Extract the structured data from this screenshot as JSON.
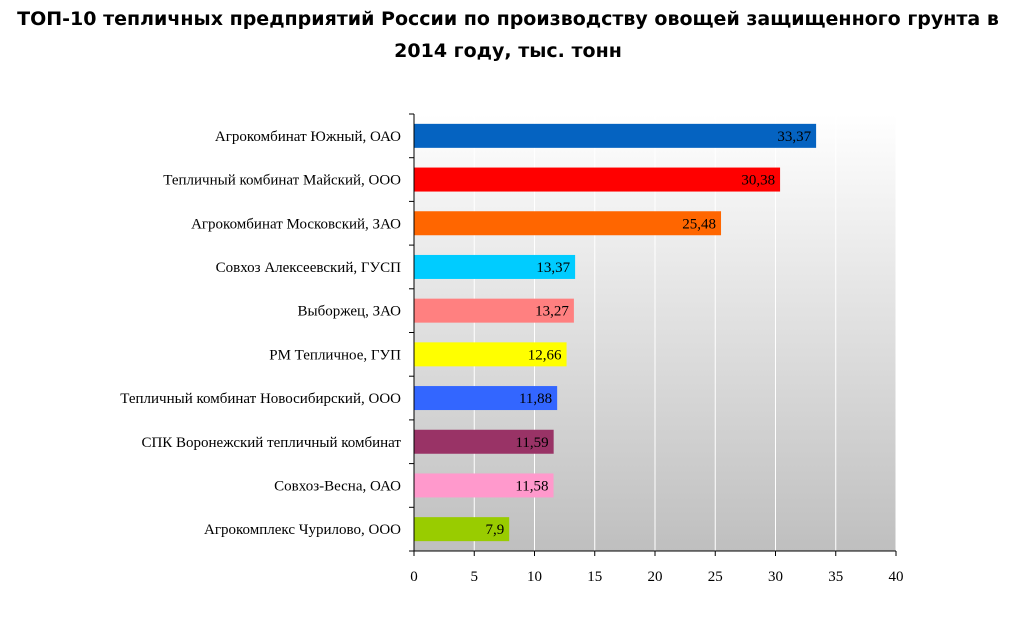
{
  "chart_data": {
    "type": "bar",
    "orientation": "horizontal",
    "title": "ТОП-10 тепличных предприятий России по производству овощей защищенного грунта в 2014 году, тыс. тонн",
    "categories": [
      "Агрокомбинат Южный, ОАО",
      "Тепличный комбинат Майский, ООО",
      "Агрокомбинат Московский, ЗАО",
      "Совхоз Алексеевский, ГУСП",
      "Выборжец, ЗАО",
      "РМ Тепличное, ГУП",
      "Тепличный комбинат Новосибирский, ООО",
      "СПК Воронежский тепличный комбинат",
      "Совхоз-Весна, ОАО",
      "Агрокомплекс Чурилово, ООО"
    ],
    "values": [
      33.37,
      30.38,
      25.48,
      13.37,
      13.27,
      12.66,
      11.88,
      11.59,
      11.58,
      7.9
    ],
    "value_labels": [
      "33,37",
      "30,38",
      "25,48",
      "13,37",
      "13,27",
      "12,66",
      "11,88",
      "11,59",
      "11,58",
      "7,9"
    ],
    "colors": [
      "#0563c1",
      "#ff0000",
      "#ff6600",
      "#00ccff",
      "#ff8080",
      "#ffff00",
      "#3366ff",
      "#993366",
      "#ff99cc",
      "#99cc00"
    ],
    "xlim": [
      0,
      40
    ],
    "xticks": [
      0,
      5,
      10,
      15,
      20,
      25,
      30,
      35,
      40
    ],
    "xlabel": "",
    "ylabel": "",
    "grid": "vertical",
    "legend": "none"
  }
}
